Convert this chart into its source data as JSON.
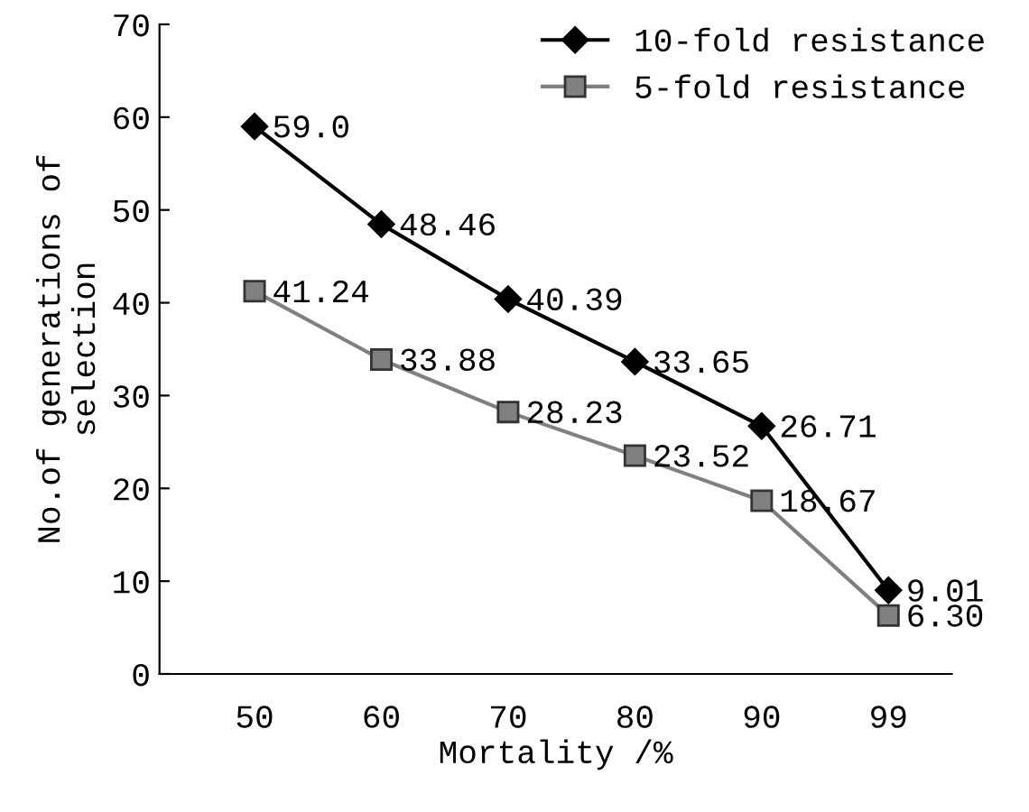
{
  "chart_data": {
    "type": "line",
    "xlabel": "Mortality /%",
    "ylabel": "No.of generations of\nselection",
    "categories": [
      "50",
      "60",
      "70",
      "80",
      "90",
      "99"
    ],
    "series": [
      {
        "name": "10-fold resistance",
        "color": "#000000",
        "marker": "diamond",
        "values": [
          59.0,
          48.46,
          40.39,
          33.65,
          26.71,
          9.01
        ],
        "value_labels": [
          "59.0",
          "48.46",
          "40.39",
          "33.65",
          "26.71",
          "9.01"
        ]
      },
      {
        "name": "5-fold resistance",
        "color": "#808080",
        "marker": "square",
        "values": [
          41.24,
          33.88,
          28.23,
          23.52,
          18.67,
          6.3
        ],
        "value_labels": [
          "41.24",
          "33.88",
          "28.23",
          "23.52",
          "18.67",
          "6.30"
        ]
      }
    ],
    "ylim": [
      0,
      70
    ],
    "yticks": [
      0,
      10,
      20,
      30,
      40,
      50,
      60,
      70
    ],
    "grid": false,
    "legend": "top right",
    "line_style": "solid"
  }
}
